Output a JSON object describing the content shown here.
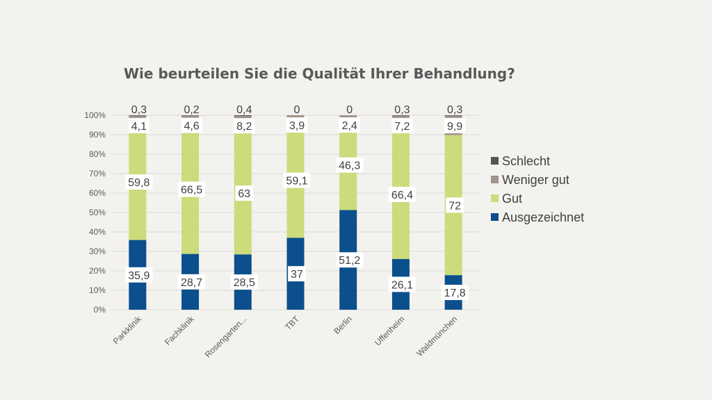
{
  "chart_data": {
    "type": "bar",
    "stacked": true,
    "normalized": true,
    "title": "Wie beurteilen Sie die Qualität Ihrer Behandlung?",
    "categories": [
      "Parkklinik",
      "Fachklinik",
      "Rosengarten...",
      "TBT",
      "Berlin",
      "Uffenheim",
      "Waldmünchen"
    ],
    "y_ticks": [
      "0%",
      "10%",
      "20%",
      "30%",
      "40%",
      "50%",
      "60%",
      "70%",
      "80%",
      "90%",
      "100%"
    ],
    "ylim": [
      0,
      100
    ],
    "legend_position": "right",
    "series": [
      {
        "name": "Ausgezeichnet",
        "color": "#0b4f8c",
        "values": [
          35.9,
          28.7,
          28.5,
          37,
          51.2,
          26.1,
          17.8
        ],
        "labels": [
          "35,9",
          "28,7",
          "28,5",
          "37",
          "51,2",
          "26,1",
          "17,8"
        ]
      },
      {
        "name": "Gut",
        "color": "#ccdb7c",
        "values": [
          59.8,
          66.5,
          63,
          59.1,
          46.3,
          66.4,
          72
        ],
        "labels": [
          "59,8",
          "66,5",
          "63",
          "59,1",
          "46,3",
          "66,4",
          "72"
        ]
      },
      {
        "name": "Weniger gut",
        "color": "#a0958d",
        "values": [
          4.1,
          4.6,
          8.2,
          3.9,
          2.4,
          7.2,
          9.9
        ],
        "labels": [
          "4,1",
          "4,6",
          "8,2",
          "3,9",
          "2,4",
          "7,2",
          "9,9"
        ]
      },
      {
        "name": "Schlecht",
        "color": "#555555",
        "values": [
          0.3,
          0.2,
          0.4,
          0,
          0,
          0.3,
          0.3
        ],
        "labels": [
          "0,3",
          "0,2",
          "0,4",
          "0",
          "0",
          "0,3",
          "0,3"
        ]
      }
    ],
    "legend_order": [
      "Schlecht",
      "Weniger gut",
      "Gut",
      "Ausgezeichnet"
    ]
  }
}
